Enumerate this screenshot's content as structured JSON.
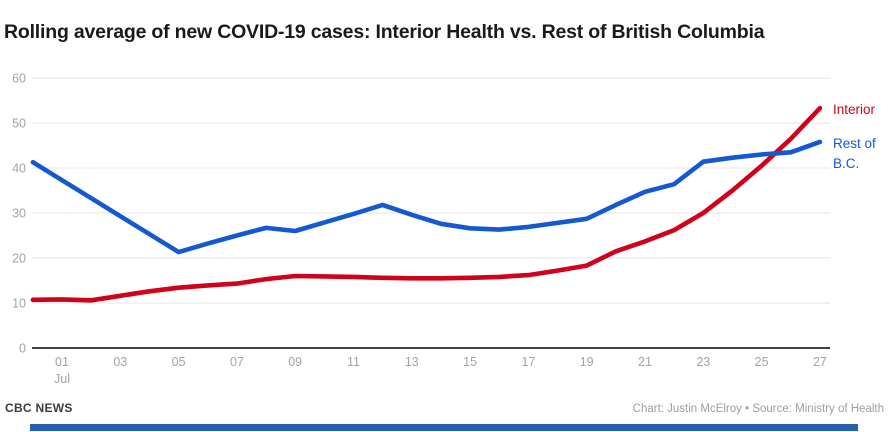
{
  "title": "Rolling average of new COVID-19 cases: Interior Health vs. Rest of British Columbia",
  "footer": {
    "brand": "CBC NEWS",
    "credit": "Chart: Justin McElroy • Source: Ministry of Health"
  },
  "colors": {
    "interior_red": "#d0021b",
    "rest_blue": "#1459d2",
    "grid": "#e5e5e5",
    "axis_line": "#444444",
    "tick_label": "#a3a3a3",
    "bottom_bar": "#2b5fad"
  },
  "legend": [
    {
      "series": "Interior",
      "lines": [
        "Interior"
      ]
    },
    {
      "series": "Rest of B.C.",
      "lines": [
        "Rest of",
        "B.C."
      ]
    }
  ],
  "chart_data": {
    "type": "line",
    "title": "Rolling average of new COVID-19 cases: Interior Health vs. Rest of British Columbia",
    "xlabel": "",
    "ylabel": "",
    "ylim": [
      0,
      60
    ],
    "yticks": [
      0,
      10,
      20,
      30,
      40,
      50,
      60
    ],
    "grid": true,
    "legend_position": "right of line ends",
    "x": [
      "Jun 30",
      "Jul 1",
      "Jul 2",
      "Jul 3",
      "Jul 4",
      "Jul 5",
      "Jul 6",
      "Jul 7",
      "Jul 8",
      "Jul 9",
      "Jul 10",
      "Jul 11",
      "Jul 12",
      "Jul 13",
      "Jul 14",
      "Jul 15",
      "Jul 16",
      "Jul 17",
      "Jul 18",
      "Jul 19",
      "Jul 20",
      "Jul 21",
      "Jul 22",
      "Jul 23",
      "Jul 24",
      "Jul 25",
      "Jul 26",
      "Jul 27"
    ],
    "xticks": {
      "days": [
        1,
        3,
        5,
        7,
        9,
        11,
        13,
        15,
        17,
        19,
        21,
        23,
        25,
        27
      ],
      "labels": [
        "01",
        "03",
        "05",
        "07",
        "09",
        "11",
        "13",
        "15",
        "17",
        "19",
        "21",
        "23",
        "25",
        "27"
      ],
      "month_label": "Jul",
      "month_label_day": 1
    },
    "series": [
      {
        "name": "Interior",
        "color": "#d0021b",
        "values": [
          10.7,
          10.8,
          10.6,
          11.6,
          12.6,
          13.4,
          13.9,
          14.3,
          15.3,
          16.0,
          15.9,
          15.8,
          15.6,
          15.5,
          15.5,
          15.6,
          15.8,
          16.2,
          17.2,
          18.3,
          21.5,
          23.7,
          26.2,
          30.0,
          35.0,
          40.5,
          46.5,
          53.3
        ]
      },
      {
        "name": "Rest of B.C.",
        "color": "#1459d2",
        "values": [
          41.3,
          37.3,
          33.3,
          29.3,
          25.3,
          21.3,
          23.2,
          25.0,
          26.7,
          26.0,
          27.9,
          29.8,
          31.8,
          29.6,
          27.6,
          26.6,
          26.3,
          26.9,
          27.8,
          28.7,
          31.8,
          34.7,
          36.4,
          41.4,
          42.3,
          43.0,
          43.5,
          45.8
        ]
      }
    ]
  }
}
